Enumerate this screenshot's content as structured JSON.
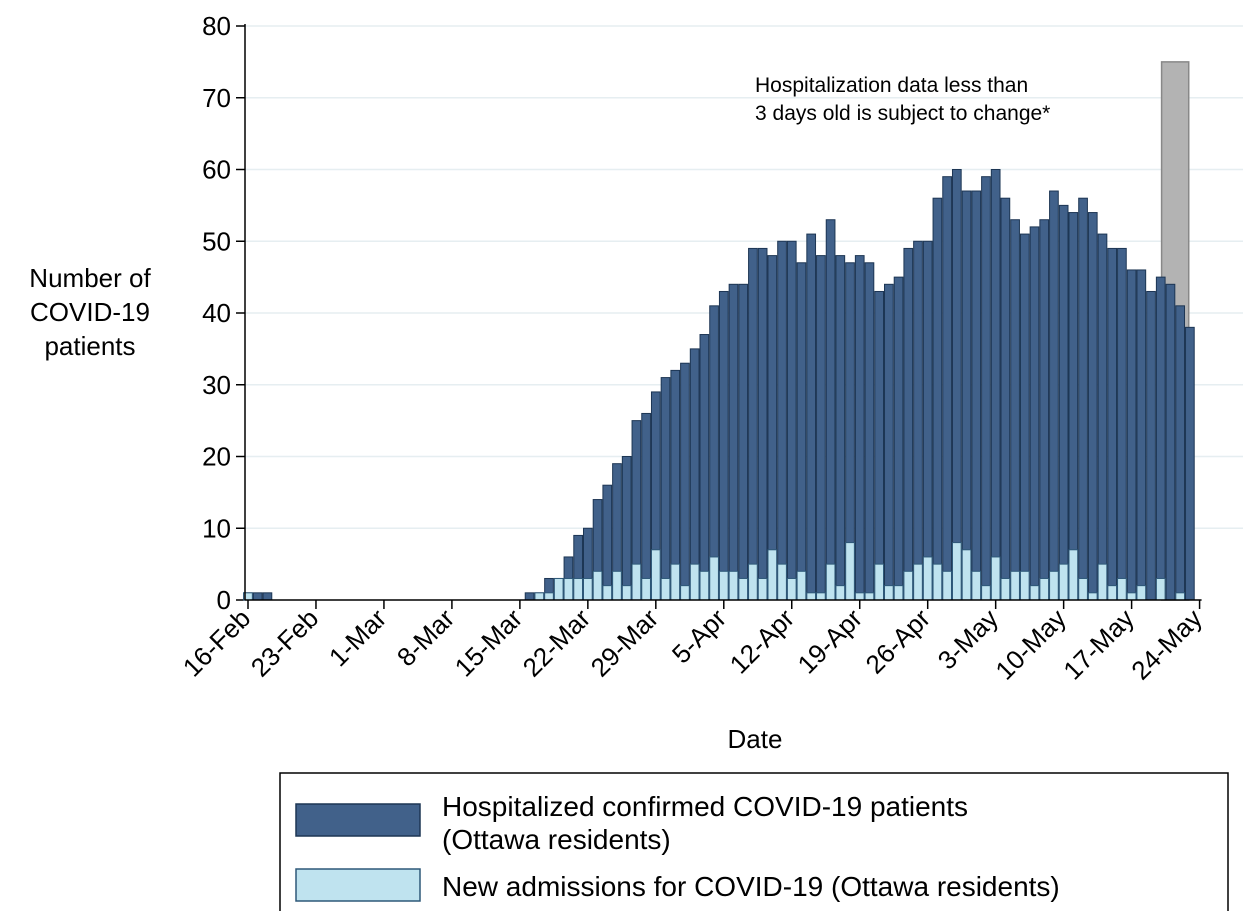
{
  "chart_data": {
    "type": "bar",
    "overlay": true,
    "y_label": [
      "Number of",
      "COVID-19",
      "patients"
    ],
    "x_label": "Date",
    "annotation": [
      "Hospitalization data less than",
      "3 days old is subject to change*"
    ],
    "shade": {
      "from_index": 95,
      "to_index": 97,
      "top": 75,
      "color": "#b3b3b3"
    },
    "categories": [
      "16-Feb",
      null,
      null,
      null,
      null,
      null,
      null,
      "23-Feb",
      null,
      null,
      null,
      null,
      null,
      null,
      "1-Mar",
      null,
      null,
      null,
      null,
      null,
      null,
      "8-Mar",
      null,
      null,
      null,
      null,
      null,
      null,
      "15-Mar",
      null,
      null,
      null,
      null,
      null,
      null,
      "22-Mar",
      null,
      null,
      null,
      null,
      null,
      null,
      "29-Mar",
      null,
      null,
      null,
      null,
      null,
      null,
      "5-Apr",
      null,
      null,
      null,
      null,
      null,
      null,
      "12-Apr",
      null,
      null,
      null,
      null,
      null,
      null,
      "19-Apr",
      null,
      null,
      null,
      null,
      null,
      null,
      "26-Apr",
      null,
      null,
      null,
      null,
      null,
      null,
      "3-May",
      null,
      null,
      null,
      null,
      null,
      null,
      "10-May",
      null,
      null,
      null,
      null,
      null,
      null,
      "17-May",
      null,
      null,
      null,
      null,
      null,
      null,
      "24-May"
    ],
    "series": [
      {
        "name": "Hospitalized confirmed COVID-19 patients\n(Ottawa residents)",
        "color": "#41618a",
        "edge": "#1d3654",
        "values": [
          1,
          1,
          1,
          0,
          0,
          0,
          0,
          0,
          0,
          0,
          0,
          0,
          0,
          0,
          0,
          0,
          0,
          0,
          0,
          0,
          0,
          0,
          0,
          0,
          0,
          0,
          0,
          0,
          0,
          1,
          1,
          3,
          3,
          6,
          9,
          10,
          14,
          16,
          19,
          20,
          25,
          26,
          29,
          31,
          32,
          33,
          35,
          37,
          41,
          43,
          44,
          44,
          49,
          49,
          48,
          50,
          50,
          47,
          51,
          48,
          53,
          48,
          47,
          48,
          47,
          43,
          44,
          45,
          49,
          50,
          50,
          56,
          59,
          60,
          57,
          57,
          59,
          60,
          56,
          53,
          51,
          52,
          53,
          57,
          55,
          54,
          56,
          54,
          51,
          49,
          49,
          46,
          46,
          43,
          45,
          44,
          41,
          38,
          null
        ]
      },
      {
        "name": "New admissions for COVID-19 (Ottawa residents)",
        "color": "#bfe3ef",
        "edge": "#2e5878",
        "values": [
          1,
          0,
          0,
          0,
          0,
          0,
          0,
          0,
          0,
          0,
          0,
          0,
          0,
          0,
          0,
          0,
          0,
          0,
          0,
          0,
          0,
          0,
          0,
          0,
          0,
          0,
          0,
          0,
          0,
          0,
          1,
          1,
          3,
          3,
          3,
          3,
          4,
          2,
          4,
          2,
          5,
          3,
          7,
          3,
          5,
          2,
          5,
          4,
          6,
          4,
          4,
          3,
          5,
          3,
          7,
          5,
          3,
          4,
          1,
          1,
          5,
          2,
          8,
          1,
          1,
          5,
          2,
          2,
          4,
          5,
          6,
          5,
          4,
          8,
          7,
          4,
          2,
          6,
          3,
          4,
          4,
          2,
          3,
          4,
          5,
          7,
          3,
          1,
          5,
          2,
          3,
          1,
          2,
          0,
          3,
          0,
          1,
          0,
          null
        ]
      }
    ],
    "ylim": [
      0,
      80
    ],
    "yticks": [
      0,
      10,
      20,
      30,
      40,
      50,
      60,
      70,
      80
    ],
    "grid": true
  }
}
